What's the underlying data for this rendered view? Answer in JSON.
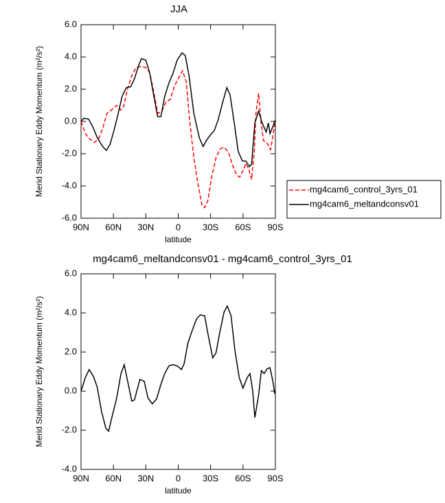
{
  "chart_data": [
    {
      "type": "line",
      "title": "JJA",
      "xlabel": "latitude",
      "ylabel": "Merid Stationary Eddy Momentum (m²/s²)",
      "xlim": [
        90,
        -90
      ],
      "xticks": [
        {
          "value": 90,
          "label": "90N"
        },
        {
          "value": 60,
          "label": "60N"
        },
        {
          "value": 30,
          "label": "30N"
        },
        0,
        {
          "value": -30,
          "label": "30S"
        },
        {
          "value": -60,
          "label": "60S"
        },
        {
          "value": -90,
          "label": "90S"
        }
      ],
      "ylim": [
        -6,
        6
      ],
      "yticks": [
        {
          "value": 6,
          "label": "6.0"
        },
        {
          "value": 4,
          "label": "4.0"
        },
        {
          "value": 2,
          "label": "2.0"
        },
        {
          "value": 0,
          "label": "0.0"
        },
        {
          "value": -2,
          "label": "-2.0"
        },
        {
          "value": -4,
          "label": "-4.0"
        },
        {
          "value": -6,
          "label": "-6.0"
        }
      ],
      "legend": "outside-right",
      "series": [
        {
          "name": "mg4cam6_control_3yrs_01",
          "color": "#ff0000",
          "style": "dashed",
          "x": [
            90,
            86,
            82.5,
            77.5,
            73.5,
            69.5,
            66,
            62,
            57,
            53,
            50.5,
            47,
            43,
            39,
            34.5,
            30,
            26.5,
            22.5,
            19,
            15,
            11,
            7.5,
            3.5,
            0,
            -4,
            -7.5,
            -10.5,
            -14.5,
            -18.5,
            -22,
            -24.5,
            -27.5,
            -31,
            -35,
            -39,
            -42.5,
            -46.5,
            -50,
            -54,
            -57,
            -61,
            -62.5,
            -65,
            -68,
            -70.5,
            -72,
            -74.5,
            -76.5,
            -79,
            -82,
            -85.5,
            -87.5,
            -90
          ],
          "values": [
            0.0,
            -0.75,
            -1.05,
            -1.3,
            -1.05,
            -0.35,
            0.5,
            0.7,
            1.0,
            0.7,
            0.95,
            2.0,
            2.85,
            3.35,
            3.4,
            3.35,
            3.05,
            1.8,
            0.5,
            0.65,
            1.25,
            1.35,
            2.2,
            2.65,
            3.15,
            2.45,
            0.1,
            -2.25,
            -3.95,
            -5.2,
            -5.35,
            -4.9,
            -3.45,
            -2.25,
            -1.7,
            -1.6,
            -1.9,
            -2.65,
            -3.3,
            -3.45,
            -2.9,
            -2.6,
            -2.9,
            -3.6,
            -1.85,
            0.5,
            1.75,
            0.1,
            -1.2,
            -1.3,
            -1.75,
            -1.0,
            0.1
          ]
        },
        {
          "name": "mg4cam6_meltandconsv01",
          "color": "#000000",
          "style": "solid",
          "x": [
            90,
            87.5,
            83,
            79,
            75,
            70,
            66.5,
            63,
            59.5,
            55.5,
            52,
            48,
            44,
            40.5,
            36.5,
            34,
            30,
            26.5,
            22.5,
            19,
            16,
            12.5,
            8.5,
            5,
            1,
            -3.5,
            -6.5,
            -10,
            -14.5,
            -19.5,
            -23,
            -26,
            -29,
            -33.5,
            -37,
            -41,
            -45,
            -48,
            -52,
            -55.5,
            -59.5,
            -62.5,
            -66,
            -68,
            -71,
            -74.5,
            -77.5,
            -81.5,
            -83.5,
            -85,
            -87.5,
            -90
          ],
          "values": [
            0.0,
            0.2,
            0.15,
            -0.35,
            -1.0,
            -1.55,
            -1.8,
            -1.4,
            -0.55,
            0.5,
            1.55,
            2.1,
            2.15,
            2.65,
            3.5,
            3.9,
            3.8,
            3.05,
            1.55,
            0.3,
            0.3,
            1.55,
            2.4,
            2.95,
            3.8,
            4.25,
            4.1,
            2.85,
            0.5,
            -1.0,
            -1.55,
            -1.2,
            -0.9,
            -0.55,
            0.1,
            1.15,
            2.1,
            1.65,
            -0.15,
            -1.85,
            -2.45,
            -2.45,
            -2.8,
            -2.65,
            -0.1,
            0.65,
            -0.05,
            -0.65,
            -0.1,
            -0.75,
            -0.35,
            0.1
          ]
        }
      ]
    },
    {
      "type": "line",
      "title": "mg4cam6_meltandconsv01 - mg4cam6_control_3yrs_01",
      "xlabel": "latitude",
      "ylabel": "Merid Stationary Eddy Momentum (m²/s²)",
      "xlim": [
        90,
        -90
      ],
      "xticks": [
        {
          "value": 90,
          "label": "90N"
        },
        {
          "value": 60,
          "label": "60N"
        },
        {
          "value": 30,
          "label": "30N"
        },
        0,
        {
          "value": -30,
          "label": "30S"
        },
        {
          "value": -60,
          "label": "60S"
        },
        {
          "value": -90,
          "label": "90S"
        }
      ],
      "ylim": [
        -4,
        6
      ],
      "yticks": [
        {
          "value": 6,
          "label": "6.0"
        },
        {
          "value": 4,
          "label": "4.0"
        },
        {
          "value": 2,
          "label": "2.0"
        },
        {
          "value": 0,
          "label": "0.0"
        },
        {
          "value": -2,
          "label": "-2.0"
        },
        {
          "value": -4,
          "label": "-4.0"
        }
      ],
      "series": [
        {
          "color": "#000000",
          "style": "solid",
          "x": [
            90,
            86,
            82.5,
            78.5,
            75,
            71,
            67,
            64.5,
            61,
            57,
            53,
            50,
            47,
            43,
            40.5,
            35.5,
            31.5,
            28,
            24,
            20,
            16,
            12.5,
            8.5,
            5,
            1,
            -3,
            -5.5,
            -9,
            -13,
            -17,
            -20.5,
            -24.5,
            -28,
            -32,
            -35,
            -38.5,
            -42.5,
            -45.5,
            -49,
            -52.5,
            -56.5,
            -60,
            -64,
            -66.5,
            -69,
            -71,
            -74.5,
            -77,
            -79.5,
            -82.5,
            -85,
            -87.5,
            -89.5
          ],
          "values": [
            0,
            0.7,
            1.1,
            0.75,
            0.2,
            -1.05,
            -1.9,
            -2.05,
            -1.25,
            -0.35,
            0.9,
            1.35,
            0.55,
            -0.5,
            -0.45,
            0.6,
            0.5,
            -0.35,
            -0.65,
            -0.4,
            0.35,
            0.9,
            1.3,
            1.35,
            1.3,
            1.1,
            1.4,
            2.45,
            3.1,
            3.7,
            3.9,
            3.85,
            2.8,
            1.7,
            1.95,
            3.0,
            4.05,
            4.35,
            3.85,
            2.1,
            0.7,
            0.15,
            0.7,
            0.9,
            0,
            -1.35,
            -0.2,
            1.05,
            0.9,
            1.15,
            1.2,
            0.55,
            -0.15
          ]
        }
      ]
    }
  ]
}
